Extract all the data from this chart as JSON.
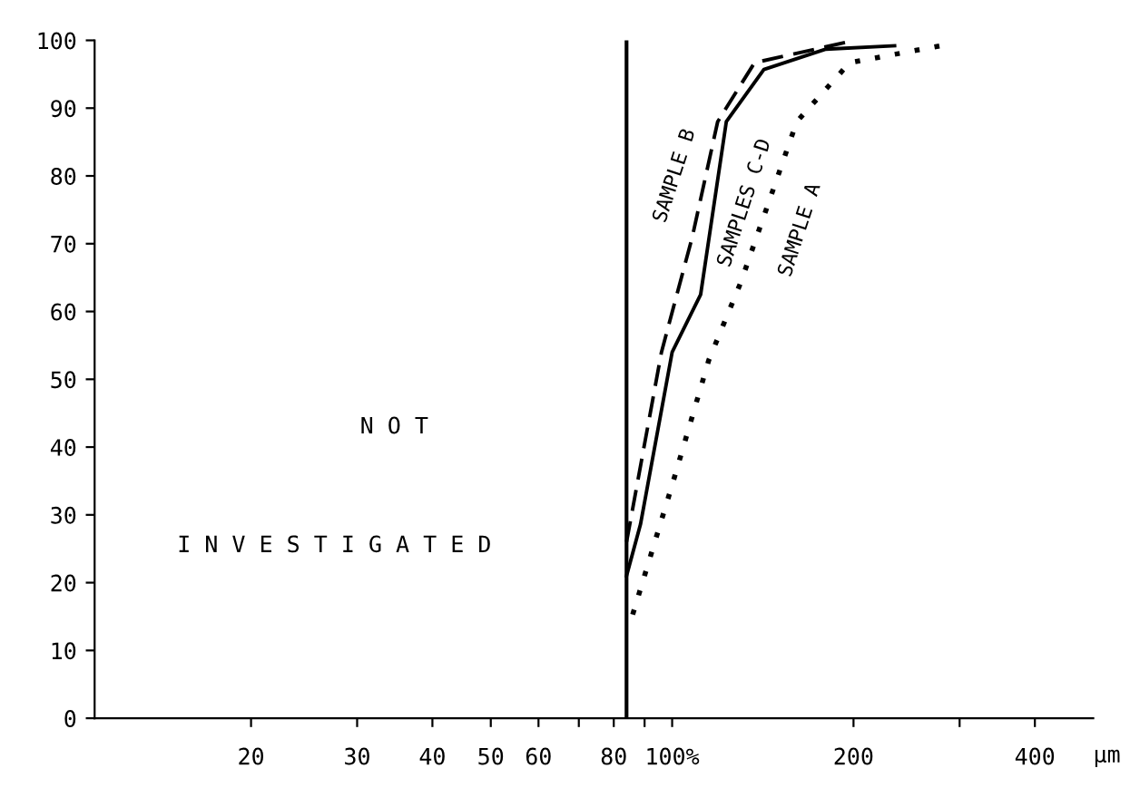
{
  "chart_data": {
    "type": "line",
    "log": "x",
    "xlim": [
      11,
      500
    ],
    "ylim": [
      0,
      100
    ],
    "xticks": [
      20,
      30,
      40,
      50,
      60,
      {
        "value": 70,
        "label": null
      },
      80,
      {
        "value": 90,
        "label": null
      },
      {
        "value": 100,
        "label": "100%"
      },
      200,
      {
        "value": 300,
        "label": null
      },
      400
    ],
    "yticks": [
      0,
      10,
      20,
      30,
      40,
      50,
      60,
      70,
      80,
      90,
      100
    ],
    "xlabel": "µm",
    "grid": false,
    "legend": false,
    "ref_lines": [
      {
        "axis": "x",
        "value": 84,
        "color": "#000000",
        "line_style": "solid"
      }
    ],
    "annotations": [
      {
        "text": "N O T"
      },
      {
        "text": "I N V E S T I G A T E D"
      }
    ],
    "series": [
      {
        "name": "SAMPLE B",
        "color": "#000000",
        "line_style": "dashed",
        "x": [
          84,
          96,
          108,
          119,
          137,
          201
        ],
        "values": [
          26,
          54,
          71,
          88,
          96.7,
          100
        ]
      },
      {
        "name": "SAMPLES C-D",
        "color": "#000000",
        "line_style": "solid",
        "x": [
          84,
          88.6,
          100,
          111.5,
          123,
          142,
          180,
          234
        ],
        "values": [
          21,
          28.6,
          54,
          62.5,
          88,
          95.7,
          98.7,
          99.2
        ]
      },
      {
        "name": "SAMPLE A",
        "color": "#000000",
        "line_style": "dotted",
        "x": [
          86,
          100,
          115,
          130,
          161,
          197,
          279
        ],
        "values": [
          15.3,
          34.4,
          52.8,
          64.3,
          88,
          96.7,
          99.2
        ]
      }
    ]
  }
}
